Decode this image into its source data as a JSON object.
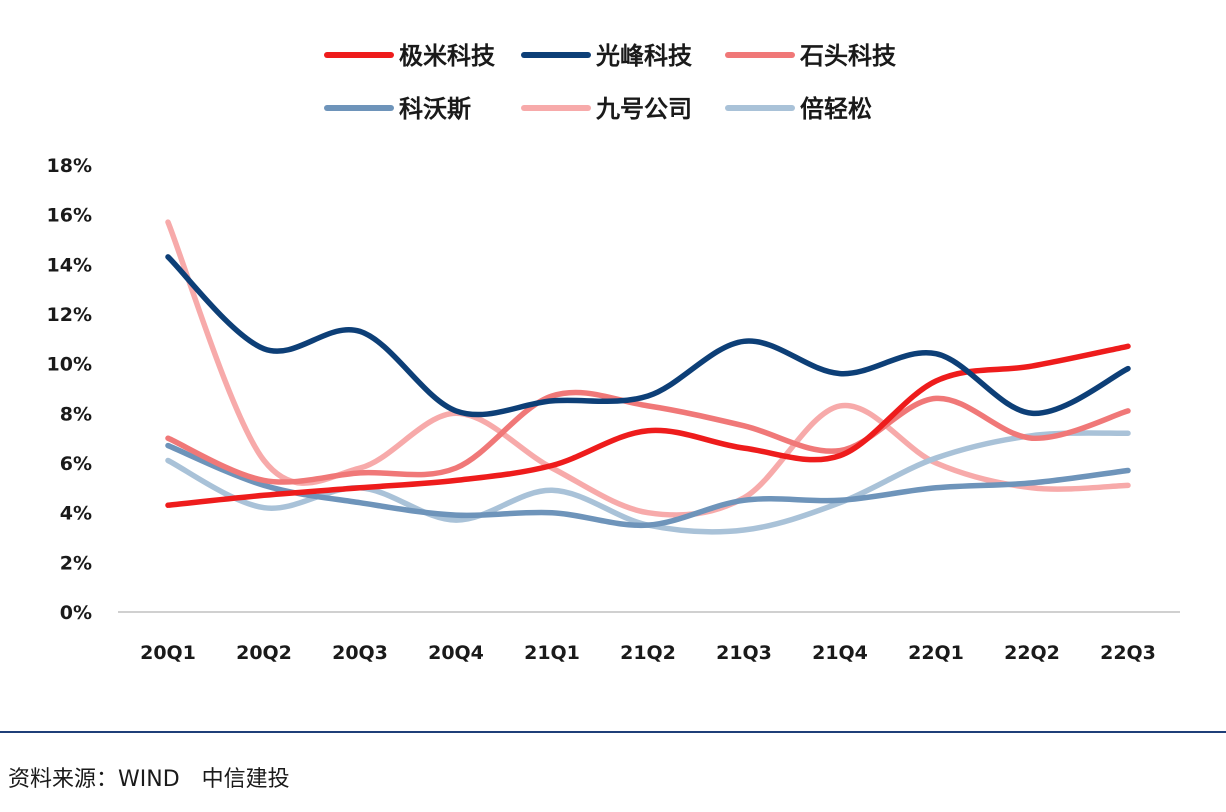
{
  "source": "资料来源：WIND　中信建投",
  "chart_data": {
    "type": "line",
    "title": "",
    "xlabel": "",
    "ylabel": "",
    "ylim": [
      0,
      18
    ],
    "y_ticks": [
      "0%",
      "2%",
      "4%",
      "6%",
      "8%",
      "10%",
      "12%",
      "14%",
      "16%",
      "18%"
    ],
    "categories": [
      "20Q1",
      "20Q2",
      "20Q3",
      "20Q4",
      "21Q1",
      "21Q2",
      "21Q3",
      "21Q4",
      "22Q1",
      "22Q2",
      "22Q3"
    ],
    "legend_position": "top",
    "grid": false,
    "series": [
      {
        "name": "极米科技",
        "color": "#ee1c1c",
        "values": [
          4.3,
          4.7,
          5.0,
          5.3,
          5.9,
          7.3,
          6.6,
          6.3,
          9.3,
          9.9,
          10.7
        ]
      },
      {
        "name": "光峰科技",
        "color": "#0d3f77",
        "values": [
          14.3,
          10.6,
          11.3,
          8.1,
          8.5,
          8.7,
          10.9,
          9.6,
          10.4,
          8.0,
          9.8
        ]
      },
      {
        "name": "石头科技",
        "color": "#f07878",
        "values": [
          7.0,
          5.3,
          5.6,
          5.8,
          8.7,
          8.3,
          7.5,
          6.5,
          8.6,
          7.0,
          8.1
        ]
      },
      {
        "name": "科沃斯",
        "color": "#6e94ba",
        "values": [
          6.7,
          5.1,
          4.4,
          3.9,
          4.0,
          3.5,
          4.5,
          4.5,
          5.0,
          5.2,
          5.7
        ]
      },
      {
        "name": "九号公司",
        "color": "#f7aaaa",
        "values": [
          15.7,
          6.1,
          5.8,
          8.0,
          5.8,
          4.0,
          4.6,
          8.3,
          6.0,
          5.0,
          5.1
        ]
      },
      {
        "name": "倍轻松",
        "color": "#a9c2d8",
        "values": [
          6.1,
          4.2,
          5.0,
          3.7,
          4.9,
          3.5,
          3.3,
          4.4,
          6.2,
          7.1,
          7.2
        ]
      }
    ]
  }
}
